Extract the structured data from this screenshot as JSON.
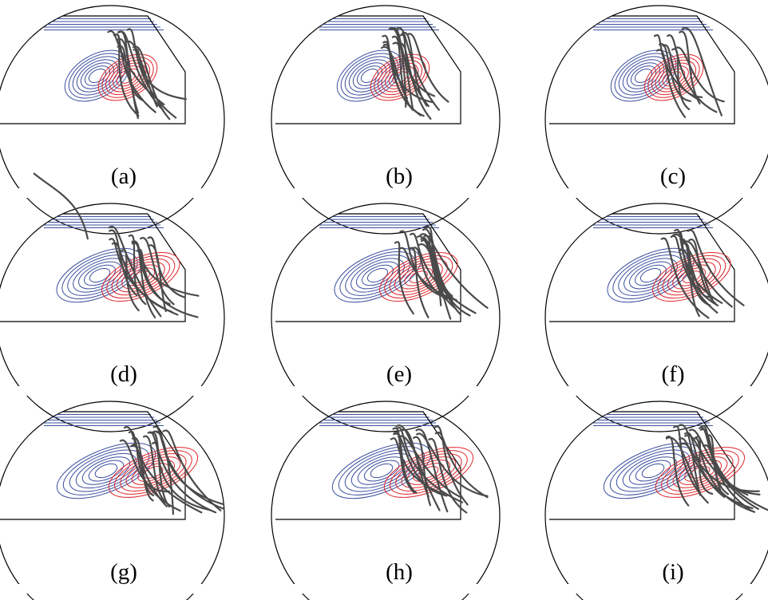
{
  "figure": {
    "panels": [
      {
        "label": "(a)",
        "contour_scale": 1.0,
        "contour_tilt": -30,
        "strands": 11
      },
      {
        "label": "(b)",
        "contour_scale": 1.0,
        "contour_tilt": -30,
        "strands": 13
      },
      {
        "label": "(c)",
        "contour_scale": 1.0,
        "contour_tilt": -30,
        "strands": 9
      },
      {
        "label": "(d)",
        "contour_scale": 1.35,
        "contour_tilt": -24,
        "strands": 13
      },
      {
        "label": "(e)",
        "contour_scale": 1.35,
        "contour_tilt": -24,
        "strands": 15
      },
      {
        "label": "(f)",
        "contour_scale": 1.35,
        "contour_tilt": -24,
        "strands": 11
      },
      {
        "label": "(g)",
        "contour_scale": 1.55,
        "contour_tilt": -22,
        "strands": 14
      },
      {
        "label": "(h)",
        "contour_scale": 1.55,
        "contour_tilt": -22,
        "strands": 14
      },
      {
        "label": "(i)",
        "contour_scale": 1.55,
        "contour_tilt": -22,
        "strands": 16
      }
    ],
    "colors": {
      "negative_contours": "#3a4f9e",
      "positive_contours": "#e0262b",
      "field_lines": "#4a4a4a",
      "outline": "#000000",
      "horizontal_lines": "#3a4f9e"
    }
  }
}
